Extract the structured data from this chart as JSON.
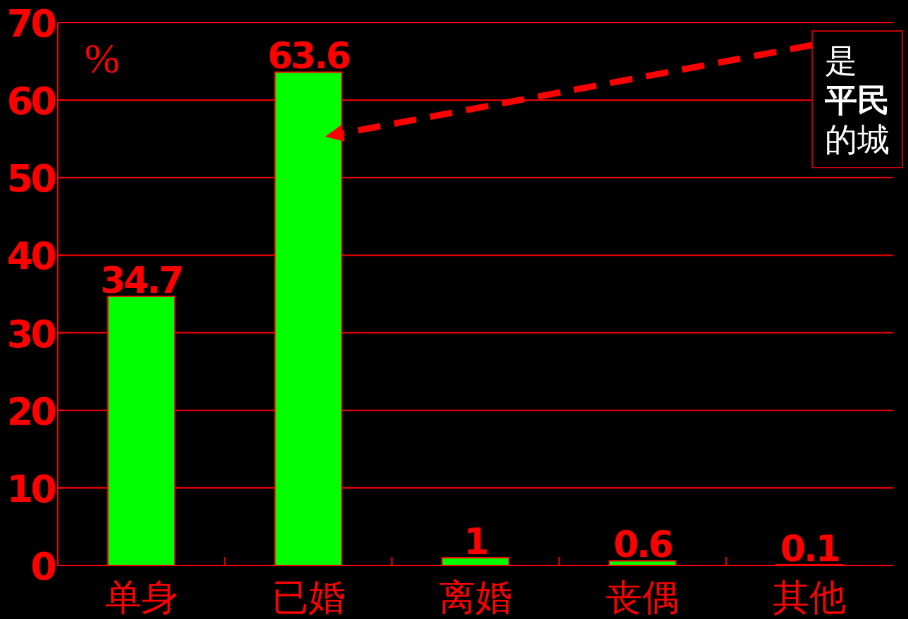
{
  "chart_data": {
    "type": "bar",
    "ylabel": "%",
    "categories": [
      "单身",
      "已婚",
      "离婚",
      "丧偶",
      "其他"
    ],
    "values": [
      34.7,
      63.6,
      1,
      0.6,
      0.1
    ],
    "color": "#00ff00",
    "ylim": [
      0,
      70
    ],
    "yticks": [
      0,
      10,
      20,
      30,
      40,
      50,
      60,
      70
    ],
    "grid": "y",
    "data_labels": true,
    "annotations": [
      "是",
      "平民",
      "的城"
    ]
  }
}
